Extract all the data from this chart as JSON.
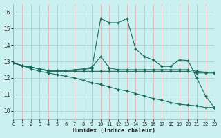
{
  "xlabel": "Humidex (Indice chaleur)",
  "xlim": [
    0,
    23
  ],
  "ylim": [
    9.5,
    16.5
  ],
  "yticks": [
    10,
    11,
    12,
    13,
    14,
    15,
    16
  ],
  "xticks": [
    0,
    1,
    2,
    3,
    4,
    5,
    6,
    7,
    8,
    9,
    10,
    11,
    12,
    13,
    14,
    15,
    16,
    17,
    18,
    19,
    20,
    21,
    22,
    23
  ],
  "bg_color": "#caf0f0",
  "line_color": "#1a6b5a",
  "grid_color": "#e8b4b4",
  "lines": [
    {
      "x": [
        0,
        1,
        2,
        3,
        4,
        5,
        6,
        7,
        8,
        9,
        10,
        11,
        12,
        13,
        14,
        15,
        16,
        17,
        18,
        19,
        20,
        21,
        22,
        23
      ],
      "y": [
        12.9,
        12.75,
        12.65,
        12.55,
        12.45,
        12.45,
        12.45,
        12.45,
        12.5,
        12.6,
        15.6,
        15.35,
        15.35,
        15.6,
        13.75,
        13.3,
        13.1,
        12.7,
        12.7,
        13.1,
        13.05,
        12.0,
        10.9,
        10.2
      ]
    },
    {
      "x": [
        0,
        1,
        2,
        3,
        4,
        5,
        6,
        7,
        8,
        9,
        10,
        11,
        12,
        13,
        14,
        15,
        16,
        17,
        18,
        19,
        20,
        21,
        22,
        23
      ],
      "y": [
        12.9,
        12.75,
        12.65,
        12.55,
        12.45,
        12.45,
        12.45,
        12.5,
        12.55,
        12.65,
        13.3,
        12.6,
        12.5,
        12.5,
        12.5,
        12.5,
        12.5,
        12.5,
        12.5,
        12.5,
        12.5,
        12.4,
        12.35,
        12.35
      ]
    },
    {
      "x": [
        0,
        1,
        2,
        3,
        4,
        5,
        6,
        7,
        8,
        9,
        10,
        11,
        12,
        13,
        14,
        15,
        16,
        17,
        18,
        19,
        20,
        21,
        22,
        23
      ],
      "y": [
        12.9,
        12.75,
        12.65,
        12.55,
        12.4,
        12.4,
        12.4,
        12.4,
        12.4,
        12.4,
        12.4,
        12.4,
        12.4,
        12.4,
        12.4,
        12.4,
        12.4,
        12.4,
        12.4,
        12.4,
        12.4,
        12.3,
        12.3,
        12.3
      ]
    },
    {
      "x": [
        0,
        1,
        2,
        3,
        4,
        5,
        6,
        7,
        8,
        9,
        10,
        11,
        12,
        13,
        14,
        15,
        16,
        17,
        18,
        19,
        20,
        21,
        22,
        23
      ],
      "y": [
        12.9,
        12.75,
        12.55,
        12.4,
        12.3,
        12.2,
        12.1,
        12.0,
        11.85,
        11.7,
        11.6,
        11.45,
        11.3,
        11.2,
        11.05,
        10.9,
        10.75,
        10.65,
        10.5,
        10.4,
        10.35,
        10.3,
        10.2,
        10.2
      ]
    }
  ]
}
